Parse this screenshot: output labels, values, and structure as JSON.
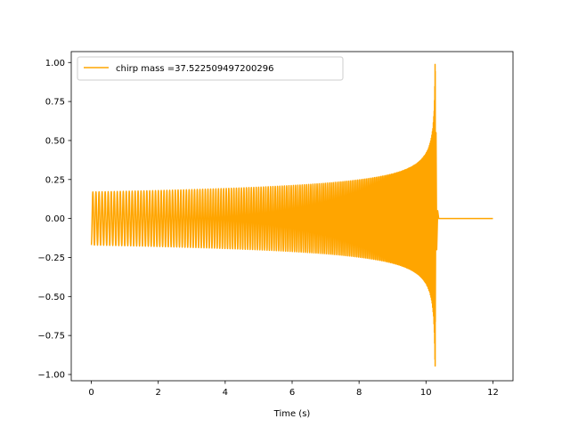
{
  "chart_data": {
    "type": "line",
    "title": "",
    "xlabel": "Time (s)",
    "ylabel": "",
    "xlim": [
      -0.6,
      12.6
    ],
    "ylim": [
      -1.04,
      1.07
    ],
    "x_ticks": [
      0,
      2,
      4,
      6,
      8,
      10,
      12
    ],
    "x_tick_labels": [
      "0",
      "2",
      "4",
      "6",
      "8",
      "10",
      "12"
    ],
    "y_ticks": [
      -1.0,
      -0.75,
      -0.5,
      -0.25,
      0.0,
      0.25,
      0.5,
      0.75,
      1.0
    ],
    "y_tick_labels": [
      "−1.00",
      "−0.75",
      "−0.50",
      "−0.25",
      "0.00",
      "0.25",
      "0.50",
      "0.75",
      "1.00"
    ],
    "grid": false,
    "legend_position": "upper-left",
    "series": [
      {
        "name": "chirp mass =37.522509497200296",
        "color": "#ffa500",
        "kind": "chirp-waveform",
        "start_time": 0.0,
        "merger_time": 10.28,
        "end_time": 12.0,
        "start_amplitude": 0.17,
        "peak_amplitude": 1.0,
        "min_value": -0.95,
        "start_value": -0.17,
        "post_merger_value": 0.0,
        "initial_frequency_hz": 10.8,
        "cycle_count": 200
      }
    ]
  }
}
